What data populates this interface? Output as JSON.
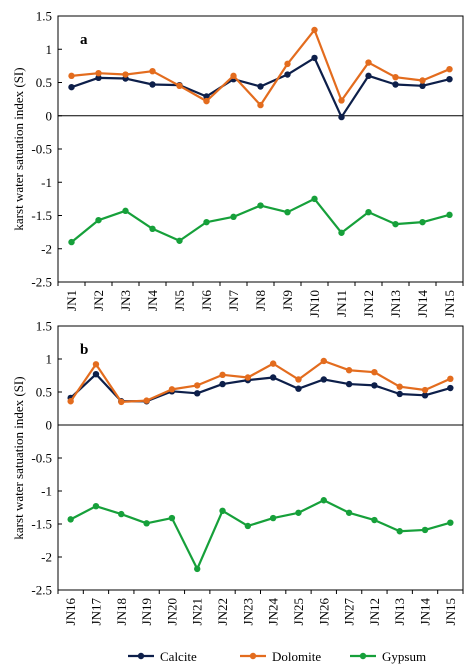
{
  "colors": {
    "calcite": "#0d1f4a",
    "dolomite": "#e36c1e",
    "gypsum": "#16a03a"
  },
  "legend": {
    "placement": "bottom-center",
    "items": [
      {
        "key": "calcite",
        "label": "Calcite"
      },
      {
        "key": "dolomite",
        "label": "Dolomite"
      },
      {
        "key": "gypsum",
        "label": "Gypsum"
      }
    ]
  },
  "chart_data": [
    {
      "type": "line",
      "panel_label": "a",
      "ylabel": "karst water satuation index (SI)",
      "ylim": [
        -2.5,
        1.5
      ],
      "yticks": [
        "1.5",
        "1",
        "0.5",
        "0",
        "-0.5",
        "-1",
        "-1.5",
        "-2",
        "-2.5"
      ],
      "grid": false,
      "categories": [
        "JN1",
        "JN2",
        "JN3",
        "JN4",
        "JN5",
        "JN6",
        "JN7",
        "JN8",
        "JN9",
        "JN10",
        "JN11",
        "JN12",
        "JN13",
        "JN14",
        "JN15"
      ],
      "series": [
        {
          "name": "Calcite",
          "values": [
            0.43,
            0.57,
            0.56,
            0.47,
            0.46,
            0.29,
            0.55,
            0.44,
            0.62,
            0.87,
            -0.02,
            0.6,
            0.47,
            0.45,
            0.55
          ]
        },
        {
          "name": "Dolomite",
          "values": [
            0.6,
            0.64,
            0.62,
            0.67,
            0.45,
            0.22,
            0.6,
            0.16,
            0.78,
            1.29,
            0.23,
            0.8,
            0.58,
            0.53,
            0.7
          ]
        },
        {
          "name": "Gypsum",
          "values": [
            -1.9,
            -1.57,
            -1.43,
            -1.7,
            -1.88,
            -1.6,
            -1.52,
            -1.35,
            -1.45,
            -1.25,
            -1.76,
            -1.45,
            -1.63,
            -1.6,
            -1.49
          ]
        }
      ]
    },
    {
      "type": "line",
      "panel_label": "b",
      "ylabel": "karst water satuation index (SI)",
      "ylim": [
        -2.5,
        1.5
      ],
      "yticks": [
        "1.5",
        "1",
        "0.5",
        "0",
        "-0.5",
        "-1",
        "-1.5",
        "-2",
        "-2.5"
      ],
      "grid": false,
      "categories": [
        "JN16",
        "JN17",
        "JN18",
        "JN19",
        "JN20",
        "JN21",
        "JN22",
        "JN23",
        "JN24",
        "JN25",
        "JN26",
        "JN27",
        "JN12",
        "JN13",
        "JN14",
        "JN15"
      ],
      "series": [
        {
          "name": "Calcite",
          "values": [
            0.41,
            0.77,
            0.36,
            0.36,
            0.51,
            0.48,
            0.62,
            0.68,
            0.72,
            0.55,
            0.69,
            0.62,
            0.6,
            0.47,
            0.45,
            0.56
          ]
        },
        {
          "name": "Dolomite",
          "values": [
            0.36,
            0.92,
            0.35,
            0.37,
            0.54,
            0.6,
            0.76,
            0.72,
            0.93,
            0.69,
            0.97,
            0.83,
            0.8,
            0.58,
            0.53,
            0.7
          ]
        },
        {
          "name": "Gypsum",
          "values": [
            -1.43,
            -1.23,
            -1.35,
            -1.49,
            -1.41,
            -2.18,
            -1.3,
            -1.53,
            -1.41,
            -1.33,
            -1.14,
            -1.33,
            -1.44,
            -1.61,
            -1.59,
            -1.48
          ]
        }
      ]
    }
  ]
}
